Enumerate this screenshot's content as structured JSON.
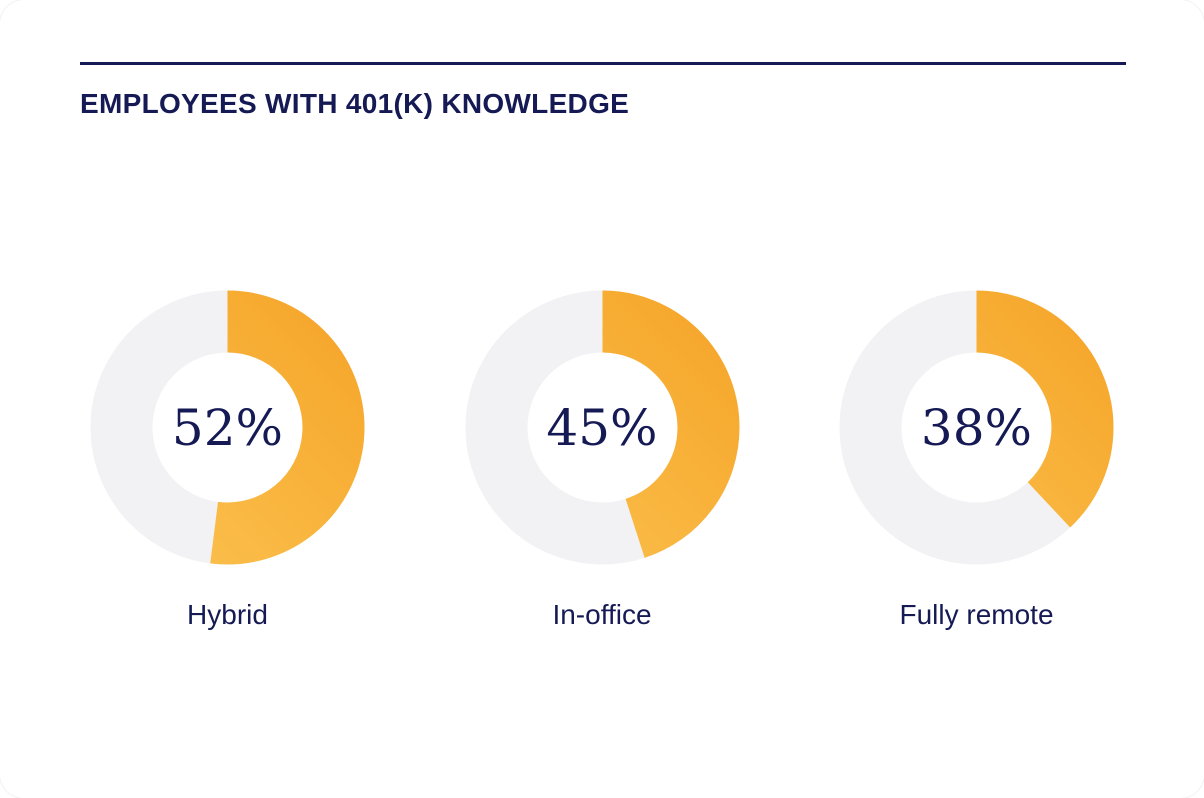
{
  "header": {
    "title": "EMPLOYEES WITH 401(K) KNOWLEDGE"
  },
  "colors": {
    "navy_text": "#151A55",
    "donut_track": "#F2F2F4",
    "donut_fill_start": "#FBC14E",
    "donut_fill_end": "#F6A72C",
    "card_background": "#FFFFFF"
  },
  "chart_data": {
    "type": "pie",
    "subtype": "donut",
    "title": "EMPLOYEES WITH 401(K) KNOWLEDGE",
    "unit": "%",
    "start_angle_deg": 0,
    "direction": "clockwise",
    "legend_position": "below-each-donut",
    "categories": [
      "Hybrid",
      "In-office",
      "Fully remote"
    ],
    "values": [
      52,
      45,
      38
    ],
    "segments": [
      {
        "label": "Hybrid",
        "value": 52,
        "display": "52%"
      },
      {
        "label": "In-office",
        "value": 45,
        "display": "45%"
      },
      {
        "label": "Fully remote",
        "value": 38,
        "display": "38%"
      }
    ]
  }
}
